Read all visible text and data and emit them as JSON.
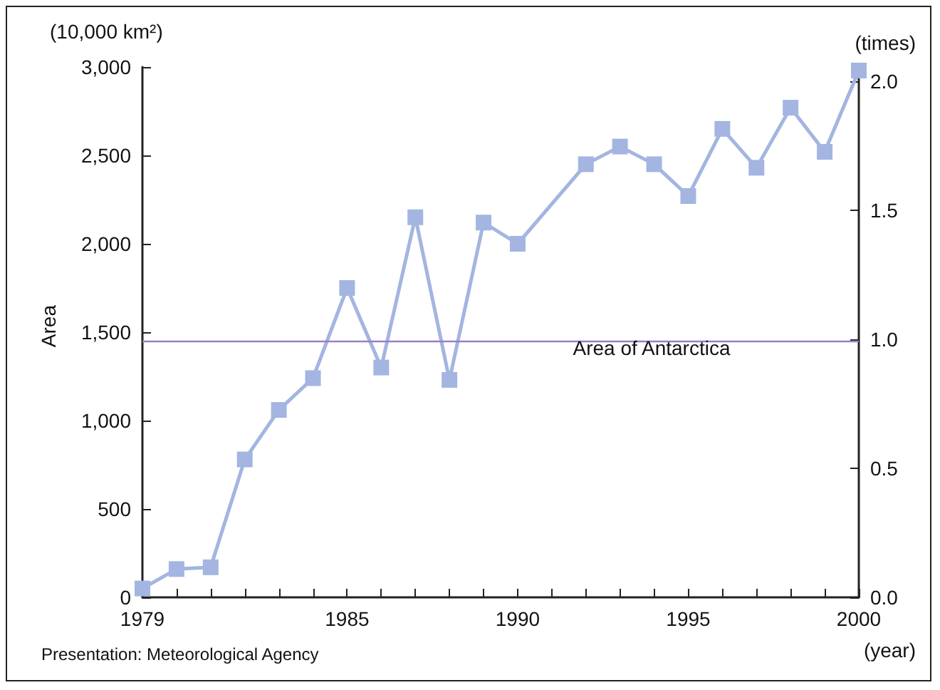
{
  "chart_data": {
    "type": "line",
    "ylabel": "Area",
    "y2label": "(times)",
    "xlabel": "(year)",
    "annotations": [
      "(10,000 km²)",
      "Presentation: Meteorological Agency"
    ],
    "x": [
      1979,
      1980,
      1981,
      1982,
      1983,
      1984,
      1985,
      1986,
      1987,
      1988,
      1989,
      1990,
      1992,
      1993,
      1994,
      1995,
      1996,
      1997,
      1998,
      1999,
      2000
    ],
    "series": [
      {
        "color": "#a3b5e0",
        "values": [
          50,
          160,
          170,
          780,
          1060,
          1240,
          1750,
          1300,
          2150,
          1230,
          2120,
          2000,
          2450,
          2550,
          2450,
          2270,
          2650,
          2430,
          2770,
          2520,
          2980
        ]
      }
    ],
    "xlim": [
      1979,
      2000
    ],
    "xticks": [
      {
        "value": 1979,
        "label": "1979"
      },
      {
        "value": 1980,
        "label": null
      },
      {
        "value": 1981,
        "label": null
      },
      {
        "value": 1982,
        "label": null
      },
      {
        "value": 1983,
        "label": null
      },
      {
        "value": 1984,
        "label": null
      },
      {
        "value": 1985,
        "label": "1985"
      },
      {
        "value": 1986,
        "label": null
      },
      {
        "value": 1987,
        "label": null
      },
      {
        "value": 1988,
        "label": null
      },
      {
        "value": 1989,
        "label": null
      },
      {
        "value": 1990,
        "label": "1990"
      },
      {
        "value": 1991,
        "label": null
      },
      {
        "value": 1992,
        "label": null
      },
      {
        "value": 1993,
        "label": null
      },
      {
        "value": 1994,
        "label": null
      },
      {
        "value": 1995,
        "label": "1995"
      },
      {
        "value": 1996,
        "label": null
      },
      {
        "value": 1997,
        "label": null
      },
      {
        "value": 1998,
        "label": null
      },
      {
        "value": 1999,
        "label": null
      },
      {
        "value": 2000,
        "label": "2000"
      }
    ],
    "ylim": [
      0,
      3000
    ],
    "yticks": [
      0,
      500,
      {
        "value": 1000,
        "label": "1,000"
      },
      {
        "value": 1500,
        "label": "1,500"
      },
      {
        "value": 2000,
        "label": "2,000"
      },
      {
        "value": 2500,
        "label": "2,500"
      },
      {
        "value": 3000,
        "label": "3,000"
      }
    ],
    "y2lim": [
      0,
      2.055
    ],
    "y2ticks": [
      {
        "value": 0,
        "label": "0.0"
      },
      {
        "value": 0.5,
        "label": "0.5"
      },
      {
        "value": 1,
        "label": "1.0"
      },
      {
        "value": 1.5,
        "label": "1.5"
      },
      {
        "value": 2,
        "label": "2.0"
      }
    ],
    "ref_lines": [
      {
        "axis": "y",
        "value": 1450,
        "label": "Area of Antarctica",
        "color": "#9b7fc6"
      }
    ],
    "grid": false,
    "marker": "square",
    "line_style": "solid"
  }
}
